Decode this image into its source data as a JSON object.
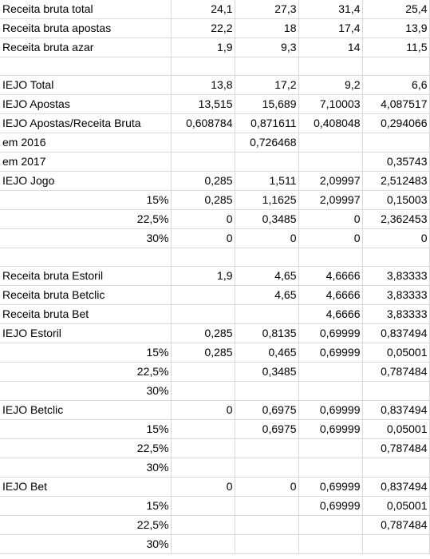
{
  "rows": [
    {
      "label": "Receita bruta total",
      "v": [
        "24,1",
        "27,3",
        "31,4",
        "25,4"
      ]
    },
    {
      "label": "Receita bruta apostas",
      "v": [
        "22,2",
        "18",
        "17,4",
        "13,9"
      ]
    },
    {
      "label": "Receita bruta azar",
      "v": [
        "1,9",
        "9,3",
        "14",
        "11,5"
      ]
    },
    {
      "label": "",
      "v": [
        "",
        "",
        "",
        ""
      ]
    },
    {
      "label": "IEJO Total",
      "v": [
        "13,8",
        "17,2",
        "9,2",
        "6,6"
      ]
    },
    {
      "label": "IEJO Apostas",
      "v": [
        "13,515",
        "15,689",
        "7,10003",
        "4,087517"
      ]
    },
    {
      "label": "IEJO Apostas/Receita Bruta",
      "v": [
        "0,608784",
        "0,871611",
        "0,408048",
        "0,294066"
      ]
    },
    {
      "label": "em 2016",
      "v": [
        "",
        "0,726468",
        "",
        ""
      ]
    },
    {
      "label": "em 2017",
      "v": [
        "",
        "",
        "",
        "0,35743"
      ]
    },
    {
      "label": "IEJO Jogo",
      "v": [
        "0,285",
        "1,511",
        "2,09997",
        "2,512483"
      ]
    },
    {
      "label": "15%",
      "align": "right",
      "v": [
        "0,285",
        "1,1625",
        "2,09997",
        "0,15003"
      ]
    },
    {
      "label": "22,5%",
      "align": "right",
      "v": [
        "0",
        "0,3485",
        "0",
        "2,362453"
      ]
    },
    {
      "label": "30%",
      "align": "right",
      "v": [
        "0",
        "0",
        "0",
        "0"
      ]
    },
    {
      "label": "",
      "v": [
        "",
        "",
        "",
        ""
      ]
    },
    {
      "label": "Receita bruta Estoril",
      "v": [
        "1,9",
        "4,65",
        "4,6666",
        "3,83333"
      ]
    },
    {
      "label": "Receita bruta Betclic",
      "v": [
        "",
        "4,65",
        "4,6666",
        "3,83333"
      ]
    },
    {
      "label": "Receita bruta Bet",
      "v": [
        "",
        "",
        "4,6666",
        "3,83333"
      ]
    },
    {
      "label": "IEJO Estoril",
      "v": [
        "0,285",
        "0,8135",
        "0,69999",
        "0,837494"
      ]
    },
    {
      "label": "15%",
      "align": "right",
      "v": [
        "0,285",
        "0,465",
        "0,69999",
        "0,05001"
      ]
    },
    {
      "label": "22,5%",
      "align": "right",
      "v": [
        "",
        "0,3485",
        "",
        "0,787484"
      ]
    },
    {
      "label": "30%",
      "align": "right",
      "v": [
        "",
        "",
        "",
        ""
      ]
    },
    {
      "label": "IEJO Betclic",
      "v": [
        "0",
        "0,6975",
        "0,69999",
        "0,837494"
      ]
    },
    {
      "label": "15%",
      "align": "right",
      "v": [
        "",
        "0,6975",
        "0,69999",
        "0,05001"
      ]
    },
    {
      "label": "22,5%",
      "align": "right",
      "v": [
        "",
        "",
        "",
        "0,787484"
      ]
    },
    {
      "label": "30%",
      "align": "right",
      "v": [
        "",
        "",
        "",
        ""
      ]
    },
    {
      "label": "IEJO Bet",
      "v": [
        "0",
        "0",
        "0,69999",
        "0,837494"
      ]
    },
    {
      "label": "15%",
      "align": "right",
      "v": [
        "",
        "",
        "0,69999",
        "0,05001"
      ]
    },
    {
      "label": "22,5%",
      "align": "right",
      "v": [
        "",
        "",
        "",
        "0,787484"
      ]
    },
    {
      "label": "30%",
      "align": "right",
      "v": [
        "",
        "",
        "",
        ""
      ]
    }
  ]
}
